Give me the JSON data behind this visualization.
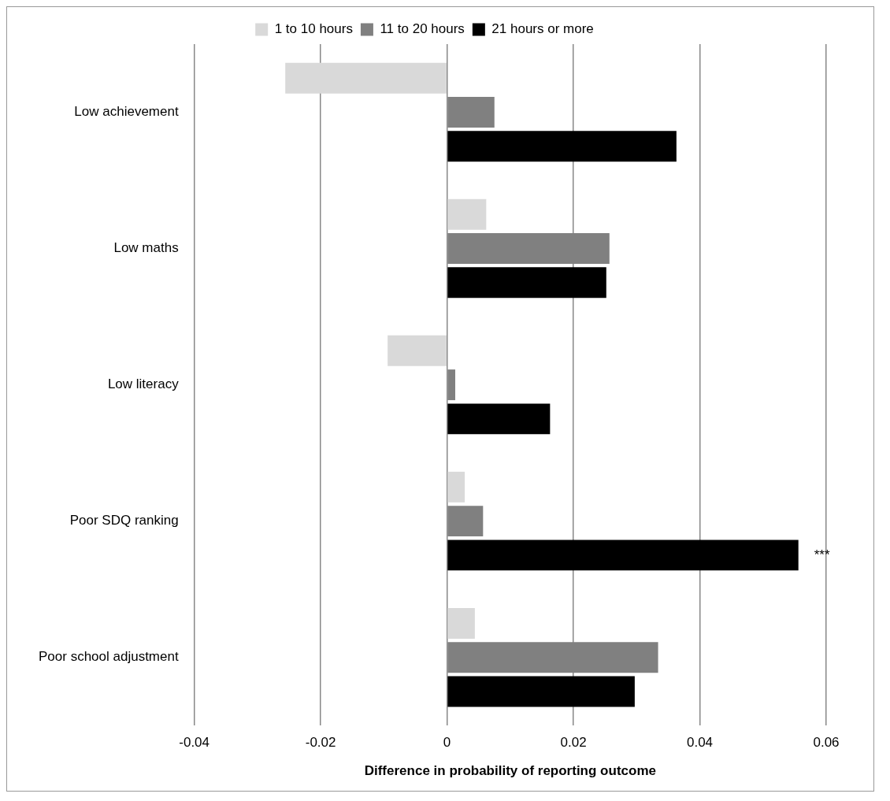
{
  "chart_data": {
    "type": "bar",
    "orientation": "horizontal",
    "xlabel": "Difference in probability of reporting outcome",
    "categories": [
      "Low achievement",
      "Low maths",
      "Low literacy",
      "Poor SDQ ranking",
      "Poor school adjustment"
    ],
    "series": [
      {
        "name": "1 to 10 hours",
        "color": "#d9d9d9",
        "values": [
          -0.0256,
          0.0062,
          -0.0094,
          0.0028,
          0.0044
        ]
      },
      {
        "name": "11 to 20 hours",
        "color": "#808080",
        "values": [
          0.0075,
          0.0257,
          0.0013,
          0.0057,
          0.0334
        ]
      },
      {
        "name": "21 hours or more",
        "color": "#000000",
        "values": [
          0.0363,
          0.0252,
          0.0163,
          0.0556,
          0.0297
        ]
      }
    ],
    "xlim": [
      -0.04,
      0.06
    ],
    "xticks": [
      -0.04,
      -0.02,
      0,
      0.02,
      0.04,
      0.06
    ],
    "grid": "x",
    "legend": "top",
    "annotations": [
      "***"
    ]
  }
}
